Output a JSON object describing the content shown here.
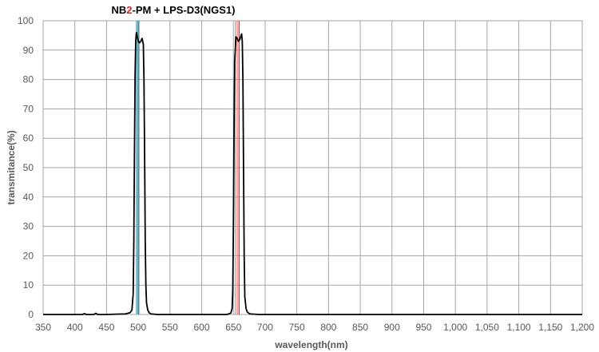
{
  "chart_data": {
    "type": "line",
    "title": {
      "parts": [
        {
          "text": "NB",
          "color": "#000000"
        },
        {
          "text": "2",
          "color": "#e02020"
        },
        {
          "text": "-PM + LPS-D3(NGS1)",
          "color": "#000000"
        }
      ]
    },
    "xlabel": "wavelength(nm)",
    "ylabel": "transmitance(%)",
    "xlim": [
      350,
      1200
    ],
    "ylim": [
      0,
      100
    ],
    "x_ticks": [
      350,
      400,
      450,
      500,
      550,
      600,
      650,
      700,
      750,
      800,
      850,
      900,
      950,
      1000,
      1050,
      1100,
      1150,
      1200
    ],
    "x_tick_labels": [
      "350",
      "400",
      "450",
      "500",
      "550",
      "600",
      "650",
      "700",
      "750",
      "800",
      "850",
      "900",
      "950",
      "1,000",
      "1,050",
      "1,100",
      "1,150",
      "1,200"
    ],
    "y_ticks": [
      0,
      10,
      20,
      30,
      40,
      50,
      60,
      70,
      80,
      90,
      100
    ],
    "y_tick_labels": [
      "0",
      "10",
      "20",
      "30",
      "40",
      "50",
      "60",
      "70",
      "80",
      "90",
      "100"
    ],
    "grid": true,
    "reference_lines": [
      {
        "x": 497,
        "color": "#6fa8c8"
      },
      {
        "x": 499,
        "color": "#4aa6a0"
      },
      {
        "x": 501,
        "color": "#3a86b8"
      },
      {
        "x": 653,
        "color": "#a8a8a8"
      },
      {
        "x": 656,
        "color": "#f07070"
      },
      {
        "x": 659,
        "color": "#e03030"
      }
    ],
    "series": [
      {
        "color": "#000000",
        "x": [
          350,
          400,
          412,
          415,
          418,
          430,
          433,
          436,
          450,
          480,
          487,
          490,
          492,
          493,
          494,
          495,
          496,
          497,
          498,
          500,
          502,
          504,
          506,
          508,
          509,
          510,
          511,
          512,
          513,
          515,
          517,
          520,
          530,
          600,
          640,
          646,
          648,
          649,
          650,
          651,
          652,
          654,
          656,
          658,
          660,
          662,
          663,
          664,
          665,
          666,
          667,
          668,
          670,
          672,
          676,
          690,
          800,
          1000,
          1200
        ],
        "y": [
          0,
          0,
          0,
          0.3,
          0,
          0,
          0.4,
          0,
          0,
          0.2,
          0.6,
          1.5,
          7,
          25,
          55,
          82,
          93,
          96,
          95,
          93,
          92.5,
          93,
          94,
          92,
          80,
          55,
          25,
          10,
          4,
          1.5,
          0.6,
          0.2,
          0,
          0,
          0,
          0.5,
          2,
          8,
          30,
          62,
          86,
          94.5,
          94,
          93,
          93.5,
          95,
          95.5,
          93,
          80,
          50,
          20,
          6,
          2,
          0.8,
          0.2,
          0,
          0,
          0,
          0
        ]
      }
    ]
  }
}
